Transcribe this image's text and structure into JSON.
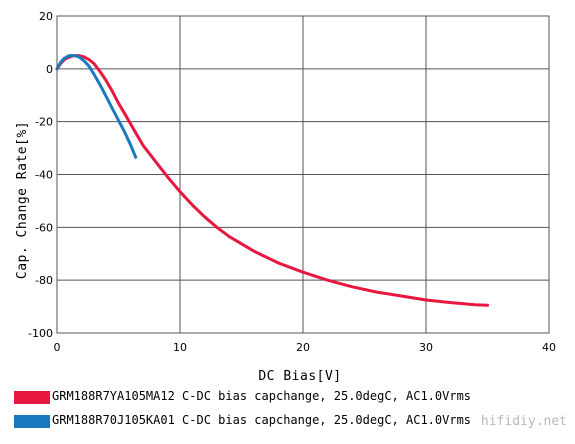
{
  "colors": {
    "series1": "#e8173f",
    "series2": "#1a7abf",
    "grid": "#555555",
    "plot_bg": "#ffffff"
  },
  "chart_data": {
    "type": "line",
    "xlabel": "DC Bias[V]",
    "ylabel": "Cap. Change Rate[%]",
    "xlim": [
      0,
      40
    ],
    "ylim": [
      -100,
      20
    ],
    "x_ticks": [
      "0",
      "10",
      "20",
      "30",
      "40"
    ],
    "y_ticks": [
      "20",
      "0",
      "-20",
      "-40",
      "-60",
      "-80",
      "-100"
    ],
    "grid": true,
    "legend_position": "bottom",
    "series": [
      {
        "name": "GRM188R7YA105MA12 C-DC bias capchange, 25.0degC, AC1.0Vrms",
        "color": "#e8173f",
        "x": [
          0,
          0.3,
          0.6,
          1.0,
          1.4,
          1.8,
          2.2,
          2.6,
          3.0,
          3.5,
          4.0,
          4.5,
          5.0,
          5.5,
          6.0,
          6.5,
          7.0,
          7.5,
          8.0,
          9.0,
          10.0,
          11.0,
          12.0,
          13.0,
          14.0,
          16.0,
          18.0,
          20.0,
          22.0,
          24.0,
          26.0,
          28.0,
          30.0,
          32.0,
          34.0,
          35.0
        ],
        "y": [
          0,
          2,
          3.5,
          4.5,
          5,
          5,
          4.5,
          3.5,
          2,
          -1,
          -4.5,
          -8.5,
          -13,
          -17,
          -21,
          -25,
          -29,
          -32,
          -35,
          -41,
          -46.5,
          -51.5,
          -56,
          -60,
          -63.5,
          -69,
          -73.5,
          -77,
          -80,
          -82.5,
          -84.5,
          -86,
          -87.5,
          -88.5,
          -89.3,
          -89.5
        ]
      },
      {
        "name": "GRM188R70J105KA01 C-DC bias capchange, 25.0degC, AC1.0Vrms",
        "color": "#1a7abf",
        "x": [
          0,
          0.3,
          0.6,
          1.0,
          1.4,
          1.8,
          2.2,
          2.6,
          3.0,
          3.5,
          4.0,
          4.5,
          5.0,
          5.5,
          6.0,
          6.4
        ],
        "y": [
          0,
          2.5,
          4,
          5,
          5,
          4.5,
          3,
          1,
          -2,
          -6,
          -10.5,
          -15,
          -19.5,
          -24,
          -29,
          -33.5
        ]
      }
    ]
  },
  "legend": {
    "item1": "GRM188R7YA105MA12 C-DC bias capchange, 25.0degC, AC1.0Vrms",
    "item2": "GRM188R70J105KA01 C-DC bias capchange, 25.0degC, AC1.0Vrms"
  },
  "watermark": "hifidiy.net"
}
